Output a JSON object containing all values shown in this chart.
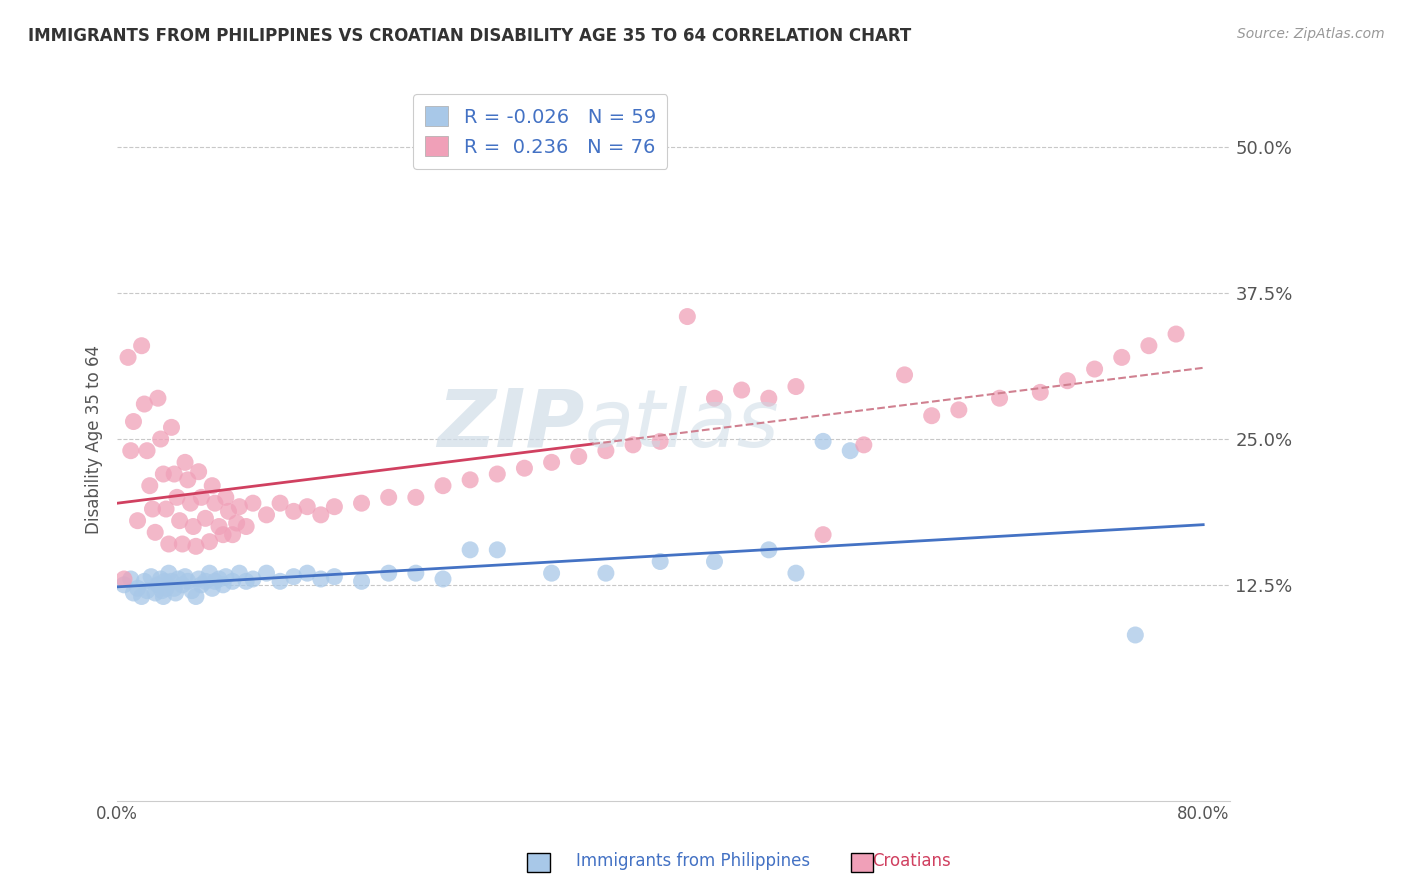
{
  "title": "IMMIGRANTS FROM PHILIPPINES VS CROATIAN DISABILITY AGE 35 TO 64 CORRELATION CHART",
  "source": "Source: ZipAtlas.com",
  "ylabel": "Disability Age 35 to 64",
  "xlim": [
    0.0,
    0.82
  ],
  "ylim": [
    -0.06,
    0.56
  ],
  "ytick_values": [
    0.125,
    0.25,
    0.375,
    0.5
  ],
  "ytick_labels": [
    "12.5%",
    "25.0%",
    "37.5%",
    "50.0%"
  ],
  "legend_R1": "-0.026",
  "legend_N1": "59",
  "legend_R2": "0.236",
  "legend_N2": "76",
  "legend_label1": "Immigrants from Philippines",
  "legend_label2": "Croatians",
  "blue_color": "#a8c8e8",
  "pink_color": "#f0a0b8",
  "blue_line_color": "#4472c4",
  "pink_line_color": "#d04060",
  "pink_dash_color": "#d08090",
  "watermark_text": "ZIPatlas",
  "watermark_zip": "ZIP",
  "watermark_atlas": "atlas",
  "background_color": "#ffffff",
  "grid_color": "#c8c8c8",
  "blue_x": [
    0.005,
    0.01,
    0.012,
    0.015,
    0.018,
    0.02,
    0.022,
    0.025,
    0.028,
    0.03,
    0.032,
    0.033,
    0.034,
    0.035,
    0.036,
    0.038,
    0.04,
    0.042,
    0.043,
    0.045,
    0.048,
    0.05,
    0.052,
    0.055,
    0.058,
    0.06,
    0.062,
    0.065,
    0.068,
    0.07,
    0.072,
    0.075,
    0.078,
    0.08,
    0.085,
    0.09,
    0.095,
    0.1,
    0.11,
    0.12,
    0.13,
    0.14,
    0.15,
    0.16,
    0.18,
    0.2,
    0.22,
    0.24,
    0.26,
    0.28,
    0.32,
    0.36,
    0.4,
    0.44,
    0.48,
    0.5,
    0.52,
    0.54,
    0.75
  ],
  "blue_y": [
    0.125,
    0.13,
    0.118,
    0.122,
    0.115,
    0.128,
    0.12,
    0.132,
    0.118,
    0.125,
    0.13,
    0.12,
    0.115,
    0.128,
    0.122,
    0.135,
    0.128,
    0.122,
    0.118,
    0.13,
    0.125,
    0.132,
    0.128,
    0.12,
    0.115,
    0.13,
    0.125,
    0.128,
    0.135,
    0.122,
    0.128,
    0.13,
    0.125,
    0.132,
    0.128,
    0.135,
    0.128,
    0.13,
    0.135,
    0.128,
    0.132,
    0.135,
    0.13,
    0.132,
    0.128,
    0.135,
    0.135,
    0.13,
    0.155,
    0.155,
    0.135,
    0.135,
    0.145,
    0.145,
    0.155,
    0.135,
    0.248,
    0.24,
    0.082
  ],
  "pink_x": [
    0.005,
    0.008,
    0.01,
    0.012,
    0.015,
    0.018,
    0.02,
    0.022,
    0.024,
    0.026,
    0.028,
    0.03,
    0.032,
    0.034,
    0.036,
    0.038,
    0.04,
    0.042,
    0.044,
    0.046,
    0.048,
    0.05,
    0.052,
    0.054,
    0.056,
    0.058,
    0.06,
    0.062,
    0.065,
    0.068,
    0.07,
    0.072,
    0.075,
    0.078,
    0.08,
    0.082,
    0.085,
    0.088,
    0.09,
    0.095,
    0.1,
    0.11,
    0.12,
    0.13,
    0.14,
    0.15,
    0.16,
    0.18,
    0.2,
    0.22,
    0.24,
    0.26,
    0.28,
    0.3,
    0.32,
    0.34,
    0.36,
    0.38,
    0.4,
    0.42,
    0.44,
    0.46,
    0.48,
    0.5,
    0.52,
    0.55,
    0.58,
    0.6,
    0.62,
    0.65,
    0.68,
    0.7,
    0.72,
    0.74,
    0.76,
    0.78
  ],
  "pink_y": [
    0.13,
    0.32,
    0.24,
    0.265,
    0.18,
    0.33,
    0.28,
    0.24,
    0.21,
    0.19,
    0.17,
    0.285,
    0.25,
    0.22,
    0.19,
    0.16,
    0.26,
    0.22,
    0.2,
    0.18,
    0.16,
    0.23,
    0.215,
    0.195,
    0.175,
    0.158,
    0.222,
    0.2,
    0.182,
    0.162,
    0.21,
    0.195,
    0.175,
    0.168,
    0.2,
    0.188,
    0.168,
    0.178,
    0.192,
    0.175,
    0.195,
    0.185,
    0.195,
    0.188,
    0.192,
    0.185,
    0.192,
    0.195,
    0.2,
    0.2,
    0.21,
    0.215,
    0.22,
    0.225,
    0.23,
    0.235,
    0.24,
    0.245,
    0.248,
    0.355,
    0.285,
    0.292,
    0.285,
    0.295,
    0.168,
    0.245,
    0.305,
    0.27,
    0.275,
    0.285,
    0.29,
    0.3,
    0.31,
    0.32,
    0.33,
    0.34
  ]
}
